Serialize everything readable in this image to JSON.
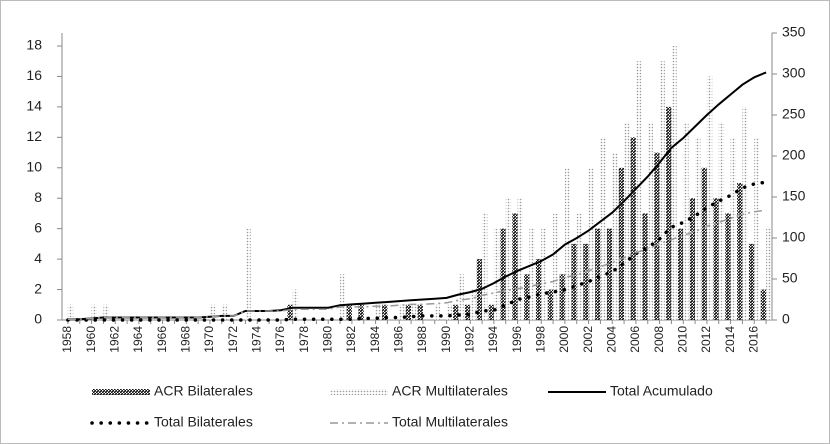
{
  "chart_data": {
    "type": "bar_line",
    "categories": [
      "1958",
      null,
      "1960",
      null,
      "1962",
      null,
      "1964",
      null,
      "1966",
      null,
      "1968",
      null,
      "1970",
      null,
      "1972",
      null,
      "1974",
      null,
      "1976",
      null,
      "1978",
      null,
      "1980",
      null,
      "1982",
      null,
      "1984",
      null,
      "1986",
      null,
      "1988",
      null,
      "1990",
      null,
      "1992",
      null,
      "1994",
      null,
      "1996",
      null,
      "1998",
      null,
      "2000",
      null,
      "2002",
      null,
      "2004",
      null,
      "2006",
      null,
      "2008",
      null,
      "2010",
      null,
      "2012",
      null,
      "2014",
      null,
      "2016",
      null
    ],
    "ylim": [
      0,
      18
    ],
    "yticks": [
      0,
      2,
      4,
      6,
      8,
      10,
      12,
      14,
      16,
      18
    ],
    "y2lim": [
      0,
      350
    ],
    "y2ticks": [
      0,
      50,
      100,
      150,
      200,
      250,
      300,
      350
    ],
    "series": [
      {
        "name": "ACR Bilaterales",
        "kind": "bar",
        "color": "#111111",
        "values": [
          0,
          0,
          0,
          0,
          0,
          0,
          0,
          0,
          0,
          0,
          0,
          0,
          0,
          0,
          0,
          0,
          0,
          0,
          0,
          1,
          0,
          0,
          0,
          0,
          1,
          1,
          0,
          1,
          0,
          1,
          1,
          0,
          0,
          1,
          1,
          4,
          1,
          6,
          7,
          3,
          4,
          2,
          3,
          5,
          5,
          6,
          6,
          10,
          12,
          7,
          11,
          14,
          6,
          8,
          10,
          8,
          7,
          9,
          5,
          2
        ]
      },
      {
        "name": "ACR Multilaterales",
        "kind": "bar",
        "color": "#9a9a9a",
        "values": [
          1,
          0,
          1,
          1,
          0,
          0,
          0,
          0,
          0,
          0,
          0,
          0,
          1,
          1,
          0,
          6,
          0,
          0,
          0,
          2,
          0,
          0,
          0,
          3,
          0,
          0,
          1,
          0,
          1,
          1,
          0,
          1,
          1,
          3,
          2,
          7,
          6,
          8,
          8,
          6,
          6,
          7,
          10,
          7,
          10,
          12,
          11,
          13,
          17,
          13,
          17,
          18,
          13,
          12,
          16,
          13,
          12,
          14,
          12,
          6
        ]
      },
      {
        "name": "Total Acumulado",
        "kind": "line",
        "axis": "y2",
        "color": "#000000",
        "values": [
          1,
          1,
          2,
          3,
          3,
          3,
          3,
          3,
          3,
          3,
          3,
          3,
          4,
          5,
          5,
          11,
          11,
          11,
          12,
          15,
          15,
          15,
          15,
          18,
          19,
          20,
          21,
          22,
          23,
          24,
          25,
          26,
          27,
          31,
          34,
          38,
          45,
          53,
          60,
          66,
          72,
          80,
          92,
          100,
          109,
          120,
          131,
          145,
          160,
          175,
          192,
          210,
          222,
          236,
          250,
          263,
          275,
          287,
          296,
          302
        ]
      },
      {
        "name": "Total Bilaterales",
        "kind": "dots",
        "axis": "y2",
        "color": "#000000",
        "values": [
          0,
          0,
          0,
          0,
          0,
          0,
          0,
          0,
          0,
          0,
          0,
          0,
          0,
          0,
          0,
          0,
          0,
          0,
          0,
          1,
          1,
          1,
          1,
          1,
          1,
          2,
          2,
          3,
          3,
          4,
          5,
          5,
          5,
          6,
          7,
          11,
          12,
          18,
          25,
          28,
          32,
          34,
          37,
          42,
          47,
          53,
          59,
          69,
          81,
          88,
          99,
          113,
          119,
          127,
          137,
          145,
          152,
          161,
          166,
          168
        ]
      },
      {
        "name": "Total Multilaterales",
        "kind": "dashdot",
        "axis": "y2",
        "color": "#999999",
        "values": [
          1,
          1,
          2,
          3,
          3,
          3,
          3,
          3,
          3,
          3,
          3,
          3,
          4,
          5,
          5,
          11,
          11,
          11,
          11,
          13,
          13,
          13,
          13,
          16,
          16,
          16,
          17,
          17,
          18,
          19,
          19,
          20,
          21,
          24,
          26,
          30,
          33,
          36,
          38,
          41,
          44,
          47,
          52,
          55,
          60,
          65,
          70,
          76,
          82,
          87,
          93,
          98,
          103,
          108,
          114,
          119,
          124,
          129,
          132,
          134
        ]
      }
    ]
  }
}
